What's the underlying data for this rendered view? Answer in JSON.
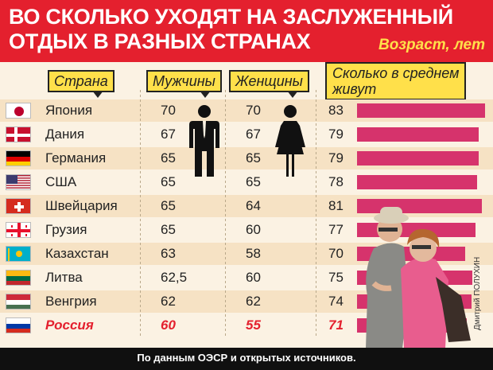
{
  "title_line1": "ВО СКОЛЬКО УХОДЯТ НА ЗАСЛУЖЕННЫЙ",
  "title_line2": "ОТДЫХ В РАЗНЫХ СТРАНАХ",
  "subtitle": "Возраст, лет",
  "headers": {
    "country": "Страна",
    "men": "Мужчины",
    "women": "Женщины",
    "life_line1": "Сколько в среднем",
    "life_line2": "живут"
  },
  "footer": "По данным ОЭСР и открытых источников.",
  "credit": "Дмитрий ПОЛУХИН",
  "colors": {
    "header_bg": "#e4202e",
    "bar": "#d6336c",
    "highlight": "#e4202e"
  },
  "chart_data": {
    "type": "table",
    "columns": [
      "Страна",
      "Мужчины",
      "Женщины",
      "Сколько в среднем живут"
    ],
    "bar_series": "Сколько в среднем живут",
    "rows": [
      {
        "country": "Япония",
        "men": "70",
        "women": "70",
        "life": "83",
        "life_value": 83,
        "flag": "jp"
      },
      {
        "country": "Дания",
        "men": "67",
        "women": "67",
        "life": "79",
        "life_value": 79,
        "flag": "dk"
      },
      {
        "country": "Германия",
        "men": "65",
        "women": "65",
        "life": "79",
        "life_value": 79,
        "flag": "de"
      },
      {
        "country": "США",
        "men": "65",
        "women": "65",
        "life": "78",
        "life_value": 78,
        "flag": "us"
      },
      {
        "country": "Швейцария",
        "men": "65",
        "women": "64",
        "life": "81",
        "life_value": 81,
        "flag": "ch"
      },
      {
        "country": "Грузия",
        "men": "65",
        "women": "60",
        "life": "77",
        "life_value": 77,
        "flag": "ge"
      },
      {
        "country": "Казахстан",
        "men": "63",
        "women": "58",
        "life": "70",
        "life_value": 70,
        "flag": "kz"
      },
      {
        "country": "Литва",
        "men": "62,5",
        "women": "60",
        "life": "75",
        "life_value": 75,
        "flag": "lt"
      },
      {
        "country": "Венгрия",
        "men": "62",
        "women": "62",
        "life": "74",
        "life_value": 74,
        "flag": "hu"
      },
      {
        "country": "Россия",
        "men": "60",
        "women": "55",
        "life": "71",
        "life_value": 71,
        "flag": "ru",
        "highlight": true
      }
    ]
  }
}
